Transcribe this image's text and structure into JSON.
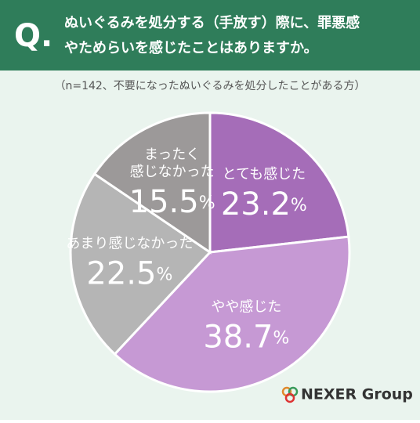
{
  "header": {
    "q": "Q.",
    "title_lines": [
      "ぬいぐるみを処分する（手放す）際に、罪悪感",
      "やためらいを感じたことはありますか。"
    ]
  },
  "chart_data": {
    "type": "pie",
    "subtitle": "（n=142、不要になったぬいぐるみを処分したことがある方）",
    "categories": [
      "とても感じた",
      "やや感じた",
      "あまり感じなかった",
      "まったく\n感じなかった"
    ],
    "values": [
      23.2,
      38.7,
      22.5,
      15.5
    ],
    "value_labels": [
      "23.2%",
      "38.7%",
      "22.5%",
      "15.5%"
    ],
    "colors": [
      "#a56db8",
      "#c699d4",
      "#b5b5b5",
      "#9c9999"
    ]
  },
  "logo": "NEXER Group"
}
